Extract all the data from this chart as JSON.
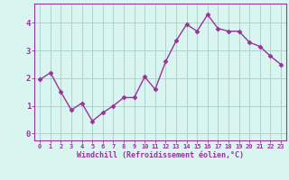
{
  "x": [
    0,
    1,
    2,
    3,
    4,
    5,
    6,
    7,
    8,
    9,
    10,
    11,
    12,
    13,
    14,
    15,
    16,
    17,
    18,
    19,
    20,
    21,
    22,
    23
  ],
  "y": [
    1.95,
    2.2,
    1.5,
    0.85,
    1.1,
    0.45,
    0.75,
    1.0,
    1.3,
    1.3,
    2.05,
    1.6,
    2.6,
    3.35,
    3.95,
    3.7,
    4.3,
    3.8,
    3.7,
    3.7,
    3.3,
    3.15,
    2.8,
    2.5
  ],
  "line_color": "#993399",
  "marker": "D",
  "markersize": 2.5,
  "linewidth": 1.0,
  "background_color": "#d8f5f0",
  "grid_color": "#aacccc",
  "xlabel": "Windchill (Refroidissement éolien,°C)",
  "xlabel_color": "#993399",
  "tick_color": "#993399",
  "ylabel_ticks": [
    0,
    1,
    2,
    3,
    4
  ],
  "xlim": [
    -0.5,
    23.5
  ],
  "ylim": [
    -0.25,
    4.7
  ]
}
